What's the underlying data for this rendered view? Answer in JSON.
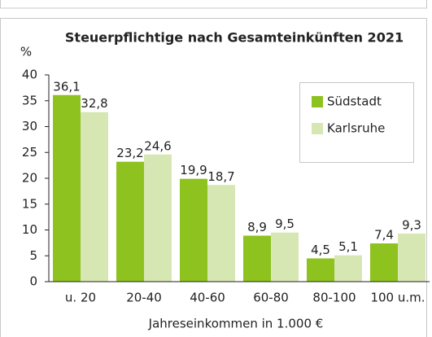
{
  "chart_data": {
    "type": "bar",
    "title": "Steuerpflichtige nach Gesamteinkünften 2021",
    "y_label": "%",
    "x_label": "Jahreseinkommen in 1.000 €",
    "categories": [
      "u. 20",
      "20-40",
      "40-60",
      "60-80",
      "80-100",
      "100 u.m."
    ],
    "series": [
      {
        "name": "Südstadt",
        "color": "#8dc21f",
        "values": [
          36.1,
          23.2,
          19.9,
          8.9,
          4.5,
          7.4
        ],
        "value_labels": [
          "36,1",
          "23,2",
          "19,9",
          "8,9",
          "4,5",
          "7,4"
        ]
      },
      {
        "name": "Karlsruhe",
        "color": "#d7e7b3",
        "values": [
          32.8,
          24.6,
          18.7,
          9.5,
          5.1,
          9.3
        ],
        "value_labels": [
          "32,8",
          "24,6",
          "18,7",
          "9,5",
          "5,1",
          "9,3"
        ]
      }
    ],
    "ylim": [
      0,
      40
    ],
    "yticks": [
      0,
      5,
      10,
      15,
      20,
      25,
      30,
      35,
      40
    ],
    "legend": "top-right"
  }
}
